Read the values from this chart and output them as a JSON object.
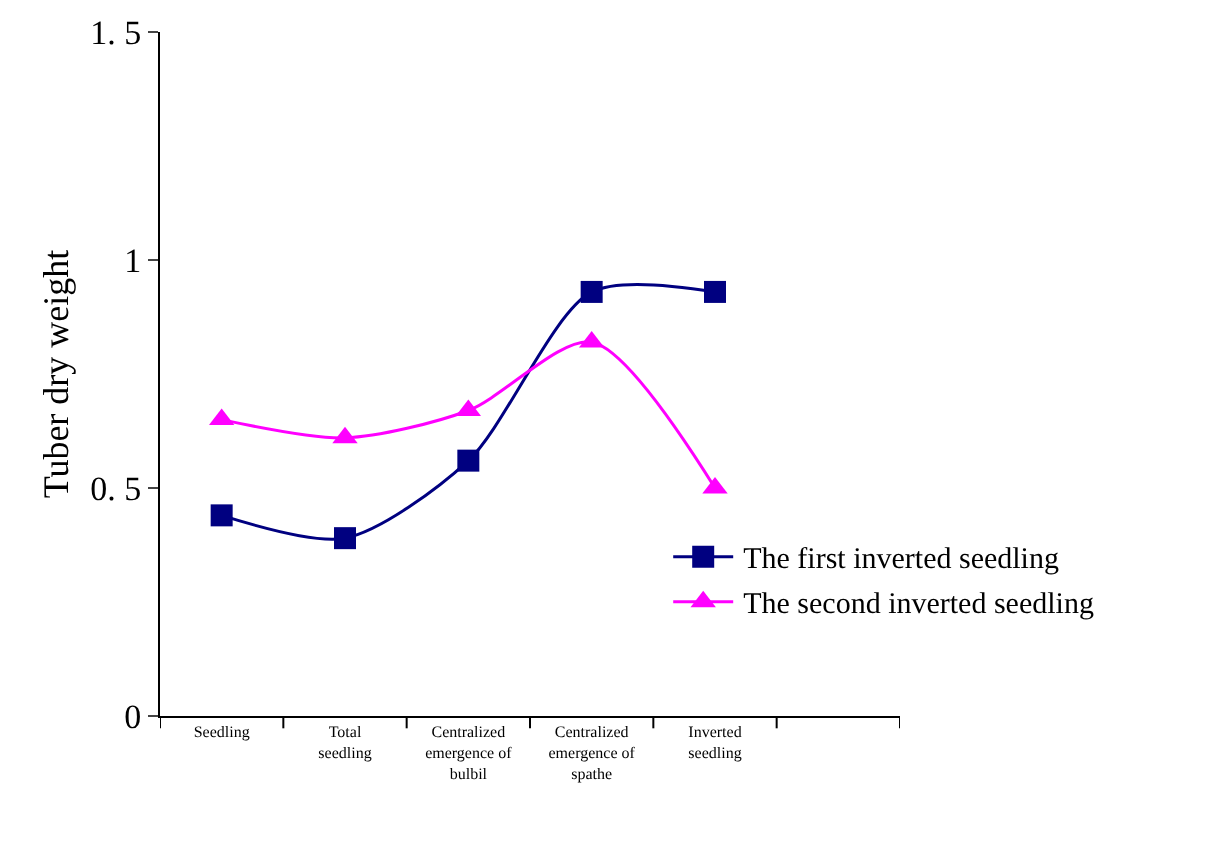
{
  "chart_data": {
    "type": "line",
    "ylabel": "Tuber dry weight",
    "categories": [
      "Seedling",
      "Total seedling",
      "Centralized emergence of bulbil",
      "Centralized emergence of spathe",
      "Inverted seedling",
      null
    ],
    "series": [
      {
        "name": "The first inverted seedling",
        "color": "#000080",
        "marker": "square",
        "values": [
          0.44,
          0.39,
          0.56,
          0.93,
          0.93,
          null
        ]
      },
      {
        "name": "The second inverted seedling",
        "color": "#ff00ff",
        "marker": "triangle",
        "values": [
          0.65,
          0.61,
          0.67,
          0.82,
          0.5,
          null
        ]
      }
    ],
    "ylim": [
      0,
      1.5
    ],
    "yticks": [
      0,
      {
        "value": 0.5,
        "label": "0. 5"
      },
      1,
      {
        "value": 1.5,
        "label": "1. 5"
      }
    ],
    "grid": false,
    "legend": "right",
    "line_style": "solid"
  }
}
